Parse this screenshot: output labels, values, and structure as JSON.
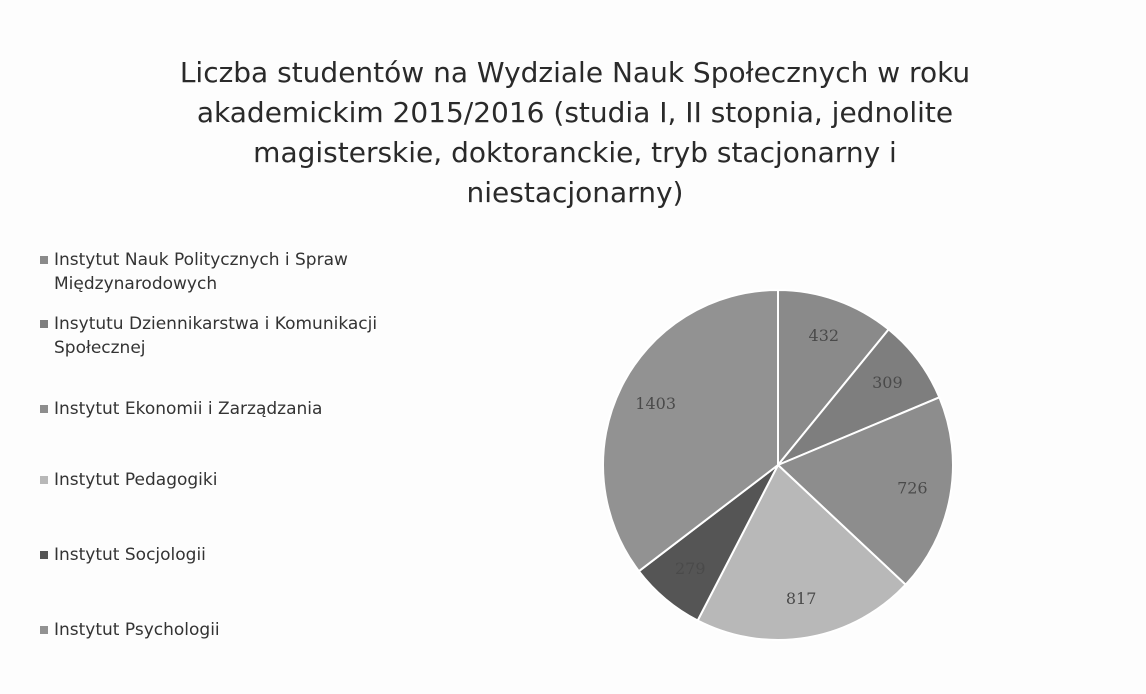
{
  "chart_data": {
    "type": "pie",
    "title": [
      "Liczba studentów na Wydziale Nauk Społecznych  w roku",
      "akademickim 2015/2016 (studia I, II stopnia, jednolite",
      "magisterskie, doktoranckie, tryb stacjonarny i",
      "niestacjonarny)"
    ],
    "categories": [
      "Instytut Nauk Politycznych i Spraw Międzynarodowych",
      "Insytutu Dziennikarstwa i Komunikacji Społecznej",
      "Instytut Ekonomii i Zarządzania",
      "Instytut Pedagogiki",
      "Instytut Socjologii",
      "Instytut Psychologii"
    ],
    "values": [
      432,
      309,
      726,
      817,
      279,
      1403
    ],
    "colors": [
      "#8a8a8a",
      "#7e7e7e",
      "#8d8d8d",
      "#b8b8b8",
      "#555555",
      "#929292"
    ],
    "legend": "left"
  }
}
